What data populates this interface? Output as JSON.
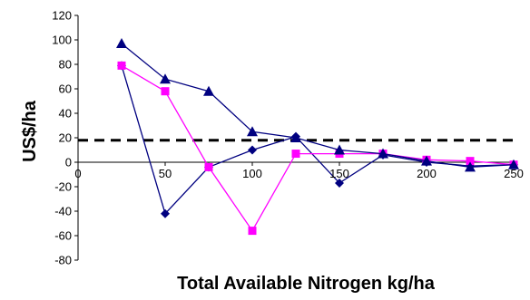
{
  "chart_data": {
    "type": "line",
    "title": "",
    "xlabel": "Total Available Nitrogen kg/ha",
    "ylabel": "US$/ha",
    "xlim": [
      0,
      250
    ],
    "ylim": [
      -80,
      120
    ],
    "x_ticks": [
      0,
      50,
      100,
      150,
      200,
      250
    ],
    "y_ticks": [
      120,
      100,
      80,
      60,
      40,
      20,
      0,
      -20,
      -40,
      -60,
      -80
    ],
    "x_tick_labels": [
      "0",
      "50",
      "100",
      "150",
      "200",
      "250"
    ],
    "y_tick_labels": [
      "120",
      "100",
      "80",
      "60",
      "40",
      "20",
      "0",
      "-20",
      "-40",
      "-60",
      "-80"
    ],
    "grid": false,
    "legend": false,
    "reference_line": {
      "y": 18,
      "style": "dashed",
      "color": "#000000"
    },
    "series": [
      {
        "marker": "diamond",
        "color": "#000080",
        "x": [
          25,
          50,
          75,
          100,
          125,
          150,
          175,
          200,
          225,
          250
        ],
        "values": [
          79,
          -42,
          -4,
          10,
          21,
          -17,
          6,
          0,
          -3,
          -2
        ]
      },
      {
        "marker": "square",
        "color": "#ff00ff",
        "x": [
          25,
          50,
          75,
          100,
          125,
          150,
          175,
          200,
          225,
          250
        ],
        "values": [
          79,
          58,
          -4,
          -56,
          7,
          7,
          7,
          2,
          1,
          -2
        ]
      },
      {
        "marker": "triangle",
        "color": "#000080",
        "x": [
          25,
          50,
          75,
          100,
          125,
          150,
          175,
          200,
          225,
          250
        ],
        "values": [
          97,
          68,
          58,
          25,
          20,
          10,
          7,
          1,
          -4,
          -2
        ]
      }
    ]
  }
}
